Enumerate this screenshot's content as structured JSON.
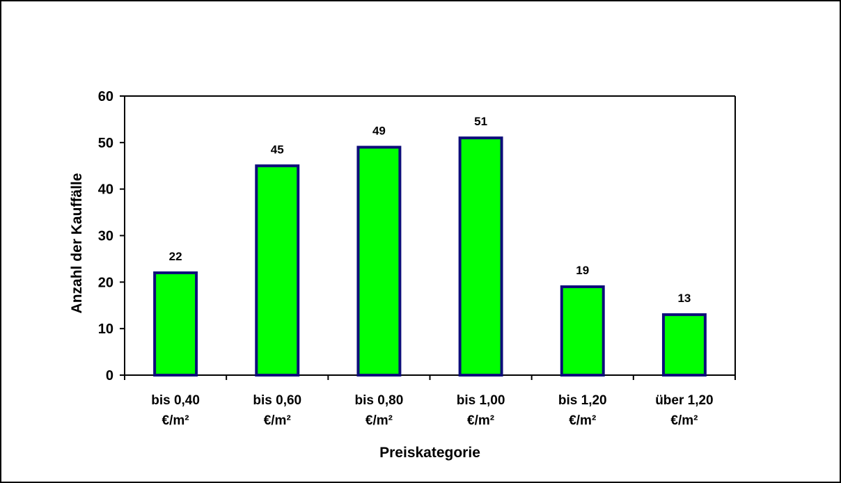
{
  "chart_data": {
    "type": "bar",
    "categories": [
      [
        "bis 0,40",
        "€/m²"
      ],
      [
        "bis 0,60",
        "€/m²"
      ],
      [
        "bis 0,80",
        "€/m²"
      ],
      [
        "bis 1,00",
        "€/m²"
      ],
      [
        "bis 1,20",
        "€/m²"
      ],
      [
        "über 1,20",
        "€/m²"
      ]
    ],
    "values": [
      22,
      45,
      49,
      51,
      19,
      13
    ],
    "data_labels": [
      "22",
      "45",
      "49",
      "51",
      "19",
      "13"
    ],
    "yticks": [
      "0",
      "10",
      "20",
      "30",
      "40",
      "50",
      "60"
    ],
    "ylim": [
      0,
      60
    ],
    "xlabel": "Preiskategorie",
    "ylabel": "Anzahl der Kauffälle",
    "grid": false,
    "legend": "none",
    "colors": {
      "bar_fill": "#00ff00",
      "bar_stroke": "#0d0d7a",
      "axis": "#000000"
    }
  }
}
